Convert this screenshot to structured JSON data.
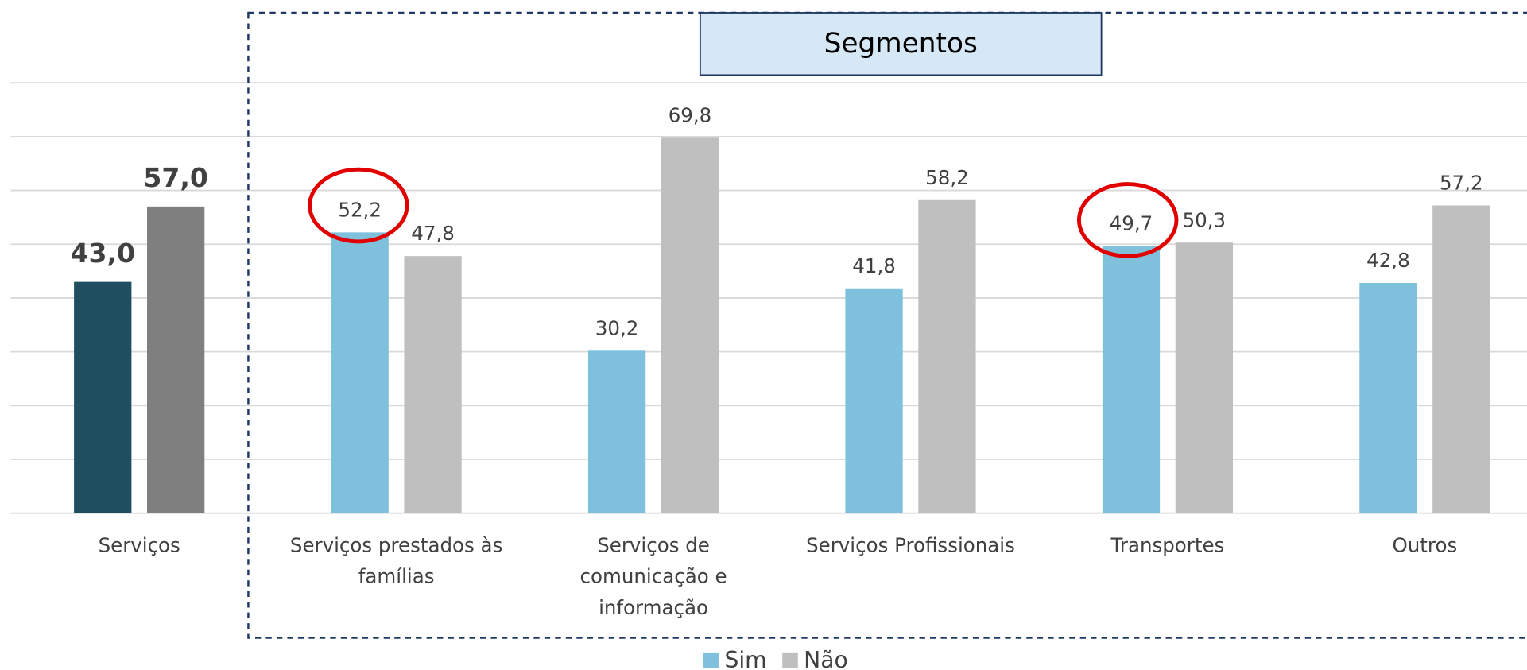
{
  "chart_data": {
    "type": "bar",
    "annotation": "Segmentos",
    "categories": [
      "Serviços",
      "Serviços prestados às famílias",
      "Serviços de comunicação e informação",
      "Serviços Profissionais",
      "Transportes",
      "Outros"
    ],
    "series": [
      {
        "name": "Sim",
        "color": "#7fc1dc",
        "colors": [
          "#1f4e5f",
          "#7fc1dc",
          "#7fc1dc",
          "#7fc1dc",
          "#7fc1dc",
          "#7fc1dc"
        ],
        "values": [
          43.0,
          52.2,
          30.2,
          41.8,
          49.7,
          42.8
        ],
        "value_labels": [
          "43,0",
          "52,2",
          "30,2",
          "41,8",
          "49,7",
          "42,8"
        ]
      },
      {
        "name": "Não",
        "color": "#bfbfbf",
        "colors": [
          "#7f7f7f",
          "#bfbfbf",
          "#bfbfbf",
          "#bfbfbf",
          "#bfbfbf",
          "#bfbfbf"
        ],
        "values": [
          57.0,
          47.8,
          69.8,
          58.2,
          50.3,
          57.2
        ],
        "value_labels": [
          "57,0",
          "47,8",
          "69,8",
          "58,2",
          "50,3",
          "57,2"
        ]
      }
    ],
    "ylim": [
      0,
      80
    ],
    "yticks": [
      0,
      10,
      20,
      30,
      40,
      50,
      60,
      70,
      80
    ],
    "grid": true,
    "legend": "bottom"
  }
}
